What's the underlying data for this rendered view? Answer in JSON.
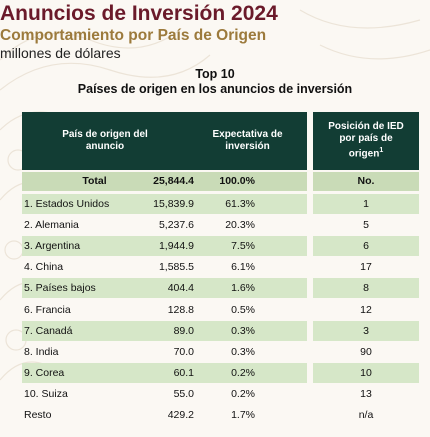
{
  "header": {
    "title": "Anuncios de Inversión 2024",
    "subtitle": "Comportamiento por País de Origen",
    "unit": "millones de dólares"
  },
  "table_title": {
    "line1": "Top 10",
    "line2": "Países de origen en los anuncios de inversión"
  },
  "columns": {
    "country": "País de origen del anuncio",
    "expectation": "Expectativa de inversión",
    "position": "Posición de IED por país de origen",
    "position_note": "1"
  },
  "total": {
    "label": "Total",
    "value": "25,844.4",
    "pct": "100.0%",
    "position": "No."
  },
  "rows": [
    {
      "name": "1. Estados Unidos",
      "value": "15,839.9",
      "pct": "61.3%",
      "position": "1"
    },
    {
      "name": "2. Alemania",
      "value": "5,237.6",
      "pct": "20.3%",
      "position": "5"
    },
    {
      "name": "3. Argentina",
      "value": "1,944.9",
      "pct": "7.5%",
      "position": "6"
    },
    {
      "name": "4. China",
      "value": "1,585.5",
      "pct": "6.1%",
      "position": "17"
    },
    {
      "name": "5. Países bajos",
      "value": "404.4",
      "pct": "1.6%",
      "position": "8"
    },
    {
      "name": "6. Francia",
      "value": "128.8",
      "pct": "0.5%",
      "position": "12"
    },
    {
      "name": "7. Canadá",
      "value": "89.0",
      "pct": "0.3%",
      "position": "3"
    },
    {
      "name": "8. India",
      "value": "70.0",
      "pct": "0.3%",
      "position": "90"
    },
    {
      "name": "9. Corea",
      "value": "60.1",
      "pct": "0.2%",
      "position": "10"
    },
    {
      "name": "10. Suiza",
      "value": "55.0",
      "pct": "0.2%",
      "position": "13"
    },
    {
      "name": "Resto",
      "value": "429.2",
      "pct": "1.7%",
      "position": "n/a"
    }
  ],
  "colors": {
    "title": "#6b1a2a",
    "subtitle": "#9c7a3c",
    "header_bg": "#123d34",
    "total_bg": "#c9dbb7",
    "row_green": "#d6e7c8"
  }
}
